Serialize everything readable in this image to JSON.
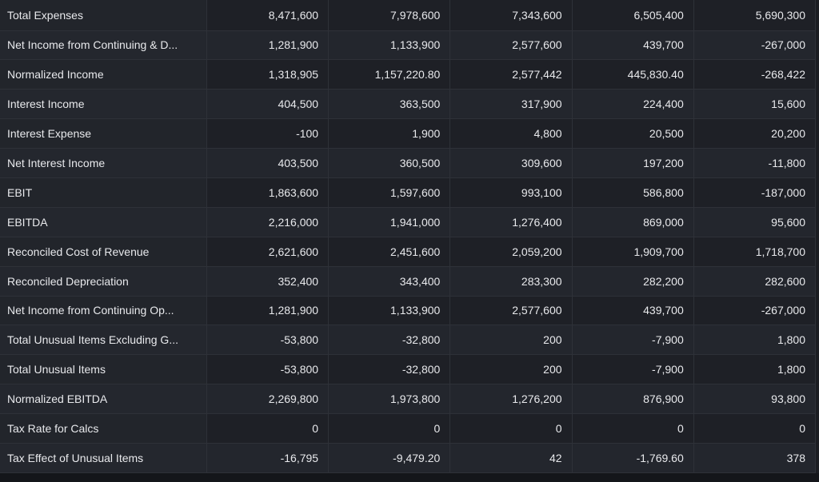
{
  "rows": [
    {
      "label": "Total Expenses",
      "values": [
        "8,471,600",
        "7,978,600",
        "7,343,600",
        "6,505,400",
        "5,690,300"
      ]
    },
    {
      "label": "Net Income from Continuing & D...",
      "values": [
        "1,281,900",
        "1,133,900",
        "2,577,600",
        "439,700",
        "-267,000"
      ]
    },
    {
      "label": "Normalized Income",
      "values": [
        "1,318,905",
        "1,157,220.80",
        "2,577,442",
        "445,830.40",
        "-268,422"
      ]
    },
    {
      "label": "Interest Income",
      "values": [
        "404,500",
        "363,500",
        "317,900",
        "224,400",
        "15,600"
      ]
    },
    {
      "label": "Interest Expense",
      "values": [
        "-100",
        "1,900",
        "4,800",
        "20,500",
        "20,200"
      ]
    },
    {
      "label": "Net Interest Income",
      "values": [
        "403,500",
        "360,500",
        "309,600",
        "197,200",
        "-11,800"
      ]
    },
    {
      "label": "EBIT",
      "values": [
        "1,863,600",
        "1,597,600",
        "993,100",
        "586,800",
        "-187,000"
      ]
    },
    {
      "label": "EBITDA",
      "values": [
        "2,216,000",
        "1,941,000",
        "1,276,400",
        "869,000",
        "95,600"
      ]
    },
    {
      "label": "Reconciled Cost of Revenue",
      "values": [
        "2,621,600",
        "2,451,600",
        "2,059,200",
        "1,909,700",
        "1,718,700"
      ]
    },
    {
      "label": "Reconciled Depreciation",
      "values": [
        "352,400",
        "343,400",
        "283,300",
        "282,200",
        "282,600"
      ]
    },
    {
      "label": "Net Income from Continuing Op...",
      "values": [
        "1,281,900",
        "1,133,900",
        "2,577,600",
        "439,700",
        "-267,000"
      ]
    },
    {
      "label": "Total Unusual Items Excluding G...",
      "values": [
        "-53,800",
        "-32,800",
        "200",
        "-7,900",
        "1,800"
      ]
    },
    {
      "label": "Total Unusual Items",
      "values": [
        "-53,800",
        "-32,800",
        "200",
        "-7,900",
        "1,800"
      ]
    },
    {
      "label": "Normalized EBITDA",
      "values": [
        "2,269,800",
        "1,973,800",
        "1,276,200",
        "876,900",
        "93,800"
      ]
    },
    {
      "label": "Tax Rate for Calcs",
      "values": [
        "0",
        "0",
        "0",
        "0",
        "0"
      ]
    },
    {
      "label": "Tax Effect of Unusual Items",
      "values": [
        "-16,795",
        "-9,479.20",
        "42",
        "-1,769.60",
        "378"
      ]
    }
  ]
}
